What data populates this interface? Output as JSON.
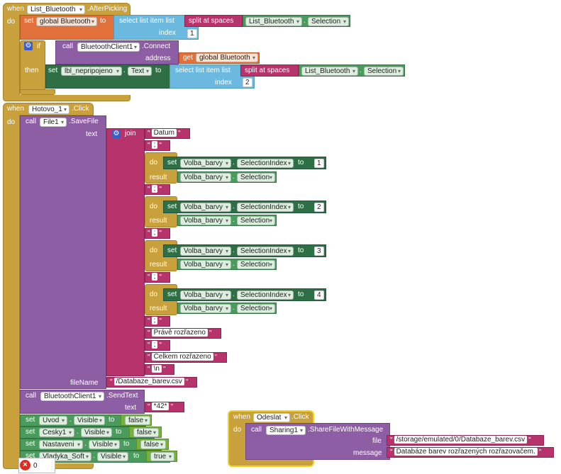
{
  "event1": {
    "when": "when",
    "component": "List_Bluetooth",
    "event": ".AfterPicking",
    "do": "do",
    "set_kw": "set",
    "var": "global Bluetooth",
    "to_kw": "to",
    "select_item": "select list item  list",
    "split": "split at spaces",
    "list_comp": "List_Bluetooth",
    "dot": ".",
    "list_prop": "Selection",
    "index_kw": "index",
    "index1": "1",
    "if_kw": "if",
    "call_kw": "call",
    "bt_comp": "BluetoothClient1",
    "connect": ".Connect",
    "address_kw": "address",
    "get_kw": "get",
    "get_var": "global Bluetooth",
    "then_kw": "then",
    "set2_kw": "set",
    "label_comp": "lbl_nepripojeno",
    "label_prop": "Text",
    "to2_kw": "to",
    "select_item2": "select list item  list",
    "split2": "split at spaces",
    "list_comp2": "List_Bluetooth",
    "list_prop2": "Selection",
    "index2_kw": "index",
    "index2": "2"
  },
  "event2": {
    "when": "when",
    "component": "Hotovo_1",
    "event": ".Click",
    "do": "do",
    "call_kw": "call",
    "file_comp": "File1",
    "savefile": ".SaveFile",
    "text_kw": "text",
    "join_kw": "join",
    "datum": "Datum",
    "sep": ";",
    "do_kw": "do",
    "result_kw": "result",
    "volba": "Volba_barvy",
    "sel_index": "SelectionIndex",
    "selection": "Selection",
    "set_kw": "set",
    "to_kw": "to",
    "n1": "1",
    "n2": "2",
    "n3": "3",
    "n4": "4",
    "prave": "Právě rozřazeno",
    "celkem": "Celkem rozřazeno",
    "newline": "\\n",
    "filename_kw": "fileName",
    "filename": "/Databaze_barev.csv",
    "call2_kw": "call",
    "bt_comp": "BluetoothClient1",
    "sendtext": ".SendText",
    "text2_kw": "text",
    "sendvalue": "*42*",
    "visible": "Visible",
    "rows": [
      {
        "comp": "Uvod",
        "value": "false"
      },
      {
        "comp": "Cesky1",
        "value": "false"
      },
      {
        "comp": "Nastaveni",
        "value": "false"
      },
      {
        "comp": "Vladyka_Soft",
        "value": "true"
      }
    ]
  },
  "event3": {
    "when": "when",
    "component": "Odeslat",
    "event": ".Click",
    "do": "do",
    "call_kw": "call",
    "comp": "Sharing1",
    "method": ".ShareFileWithMessage",
    "file_kw": "file",
    "file": "/storage/emulated/0/Databaze_barev.csv",
    "message_kw": "message",
    "message": "Databáze barev rozřazených rozřazovačem."
  },
  "warnings": {
    "count": "0"
  }
}
